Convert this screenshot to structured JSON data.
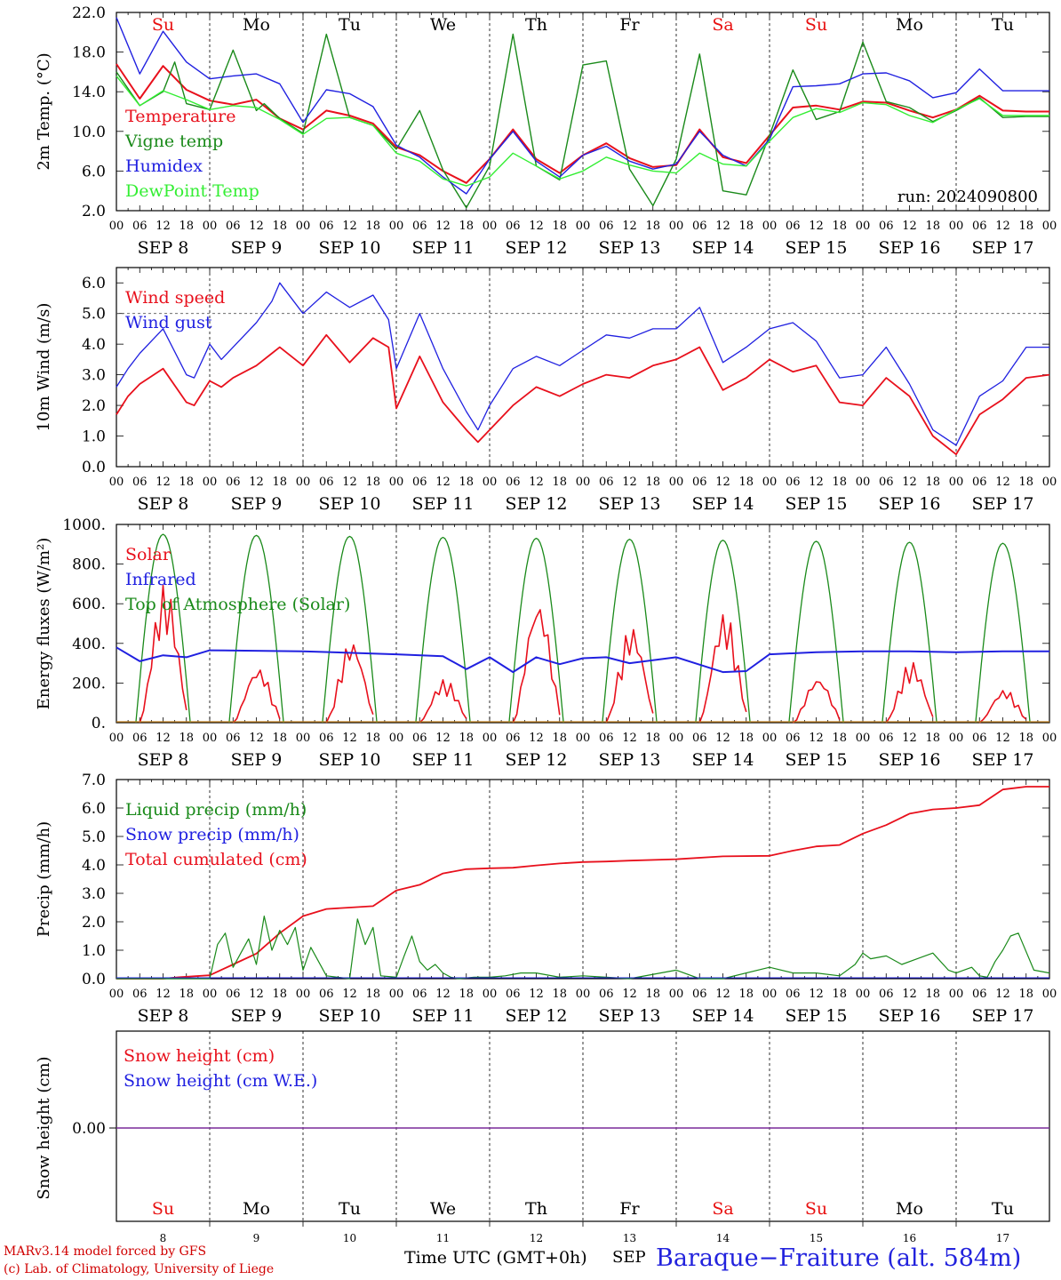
{
  "meta": {
    "run_label": "run: 2024090800",
    "footer_model": "MARv3.14 model forced by GFS",
    "footer_lab": "(c) Lab. of Climatology, University of Liege",
    "footer_time": "Time UTC (GMT+0h)",
    "footer_sep": "SEP",
    "station": "Baraque−Fraiture (alt. 584m)"
  },
  "colors": {
    "red": "#e8101c",
    "green": "#1a8a1a",
    "blue": "#2020e0",
    "lightgreen": "#33ee33",
    "purple": "#7a2a9a",
    "weekend": "#e81010"
  },
  "days": {
    "weekday_labels": [
      "Su",
      "Mo",
      "Tu",
      "We",
      "Th",
      "Fr",
      "Sa",
      "Su",
      "Mo",
      "Tu"
    ],
    "weekend_flags": [
      true,
      false,
      false,
      false,
      false,
      false,
      true,
      true,
      false,
      false
    ],
    "date_labels": [
      "SEP  8",
      "SEP  9",
      "SEP 10",
      "SEP 11",
      "SEP 12",
      "SEP 13",
      "SEP 14",
      "SEP 15",
      "SEP 16",
      "SEP 17"
    ],
    "day_numbers": [
      "8",
      "9",
      "10",
      "11",
      "12",
      "13",
      "14",
      "15",
      "16",
      "17"
    ],
    "hour_ticks": [
      "00",
      "06",
      "12",
      "18"
    ],
    "final_hour_tick": "00"
  },
  "chart_data": [
    {
      "type": "line",
      "x_unit": "hours since 2024-09-08 00 UTC",
      "ylabel": "2m Temp. (°C)",
      "ylim": [
        2,
        22
      ],
      "yticks": [
        "2.0",
        "6.0",
        "10.0",
        "14.0",
        "18.0",
        "22.0"
      ],
      "legend": [
        "Temperature",
        "Vigne temp",
        "Humidex",
        "DewPoint Temp"
      ],
      "series": [
        {
          "name": "Temperature",
          "color": "red",
          "x": [
            0,
            6,
            12,
            18,
            24,
            30,
            36,
            42,
            48,
            54,
            60,
            66,
            72,
            78,
            84,
            90,
            96,
            102,
            108,
            114,
            120,
            126,
            132,
            138,
            144,
            150,
            156,
            162,
            168,
            174,
            180,
            186,
            192,
            198,
            204,
            210,
            216,
            222,
            228,
            234,
            240
          ],
          "y": [
            16.8,
            13.3,
            16.6,
            14.2,
            13.1,
            12.7,
            13.2,
            11.3,
            10.2,
            12.1,
            11.6,
            10.8,
            8.4,
            7.6,
            6,
            4.8,
            7.2,
            10.2,
            7.2,
            5.8,
            7.6,
            8.8,
            7.3,
            6.4,
            6.6,
            10.2,
            7.4,
            6.8,
            9.6,
            12.4,
            12.6,
            12.2,
            13,
            12.9,
            12.1,
            11.4,
            12.2,
            13.6,
            12.1,
            12.0,
            12.0
          ]
        },
        {
          "name": "Vigne temp",
          "color": "green",
          "x": [
            0,
            6,
            12,
            15,
            18,
            24,
            30,
            36,
            38,
            42,
            48,
            54,
            60,
            66,
            72,
            78,
            84,
            90,
            96,
            102,
            108,
            114,
            120,
            126,
            132,
            138,
            144,
            150,
            156,
            162,
            168,
            174,
            180,
            186,
            192,
            198,
            204,
            210,
            216,
            222,
            228,
            234,
            240
          ],
          "y": [
            16,
            12.6,
            14,
            17,
            12.8,
            12.2,
            18.2,
            12.1,
            12.8,
            11.3,
            9.8,
            19.8,
            11.4,
            10.6,
            8.2,
            12.1,
            6.1,
            2.3,
            6.5,
            19.8,
            6.5,
            5.1,
            16.7,
            17.1,
            6.2,
            2.5,
            7.2,
            17.8,
            4.0,
            3.6,
            9.6,
            16.2,
            11.2,
            12,
            19,
            13,
            12.4,
            11.0,
            12.1,
            13.4,
            11.4,
            11.5,
            11.5
          ]
        },
        {
          "name": "Humidex",
          "color": "blue",
          "x": [
            0,
            6,
            12,
            18,
            24,
            30,
            36,
            42,
            48,
            54,
            60,
            66,
            72,
            78,
            84,
            90,
            96,
            102,
            108,
            114,
            120,
            126,
            132,
            138,
            144,
            150,
            156,
            162,
            168,
            174,
            180,
            186,
            192,
            198,
            204,
            210,
            216,
            222,
            228,
            234,
            240
          ],
          "y": [
            21.5,
            15.8,
            20.1,
            17,
            15.3,
            15.6,
            15.8,
            14.8,
            10.9,
            14.2,
            13.8,
            12.5,
            8.6,
            7.4,
            5.4,
            3.7,
            7.2,
            10.0,
            7.0,
            5.4,
            7.6,
            8.5,
            7.0,
            6.2,
            6.7,
            10.0,
            7.6,
            6.5,
            9.2,
            14.5,
            14.6,
            14.8,
            15.8,
            15.9,
            15.1,
            13.4,
            13.9,
            16.3,
            14.1,
            14.1,
            14.1
          ]
        },
        {
          "name": "DewPoint Temp",
          "color": "lightgreen",
          "x": [
            0,
            6,
            12,
            18,
            24,
            30,
            36,
            42,
            48,
            54,
            60,
            66,
            72,
            78,
            84,
            90,
            96,
            102,
            108,
            114,
            120,
            126,
            132,
            138,
            144,
            150,
            156,
            162,
            168,
            174,
            180,
            186,
            192,
            198,
            204,
            210,
            216,
            222,
            228,
            234,
            240
          ],
          "y": [
            15.6,
            12.6,
            14.1,
            13.2,
            12.2,
            12.6,
            12.4,
            11.2,
            9.7,
            11.3,
            11.4,
            10.6,
            7.8,
            7.0,
            5.2,
            4.5,
            5.4,
            7.8,
            6.5,
            5.2,
            6.0,
            7.4,
            6.6,
            6.0,
            5.8,
            7.8,
            6.7,
            6.5,
            9.0,
            11.4,
            12.3,
            11.9,
            12.9,
            12.7,
            11.6,
            10.9,
            12.2,
            13.3,
            11.6,
            11.6,
            11.6
          ]
        }
      ]
    },
    {
      "type": "line",
      "x_unit": "hours since 2024-09-08 00 UTC",
      "ylabel": "10m Wind (m/s)",
      "ylim": [
        0,
        6.5
      ],
      "yticks": [
        "0.0",
        "1.0",
        "2.0",
        "3.0",
        "4.0",
        "5.0",
        "6.0"
      ],
      "reference_line": 5.0,
      "legend": [
        "Wind speed",
        "Wind gust"
      ],
      "series": [
        {
          "name": "Wind speed",
          "color": "red",
          "x": [
            0,
            3,
            6,
            12,
            18,
            20,
            24,
            27,
            30,
            36,
            40,
            42,
            48,
            54,
            60,
            66,
            70,
            72,
            78,
            84,
            90,
            93,
            96,
            102,
            108,
            114,
            120,
            126,
            132,
            138,
            144,
            150,
            156,
            162,
            168,
            174,
            180,
            186,
            192,
            198,
            204,
            210,
            216,
            222,
            228,
            234,
            240
          ],
          "y": [
            1.7,
            2.3,
            2.7,
            3.2,
            2.1,
            2.0,
            2.8,
            2.6,
            2.9,
            3.3,
            3.7,
            3.9,
            3.3,
            4.3,
            3.4,
            4.2,
            3.9,
            1.9,
            3.6,
            2.1,
            1.2,
            0.8,
            1.2,
            2.0,
            2.6,
            2.3,
            2.7,
            3.0,
            2.9,
            3.3,
            3.5,
            3.9,
            2.5,
            2.9,
            3.5,
            3.1,
            3.3,
            2.1,
            2.0,
            2.9,
            2.3,
            1.0,
            0.4,
            1.7,
            2.2,
            2.9,
            3.0
          ]
        },
        {
          "name": "Wind gust",
          "color": "blue",
          "x": [
            0,
            3,
            6,
            12,
            18,
            20,
            24,
            27,
            30,
            36,
            40,
            42,
            48,
            54,
            60,
            66,
            70,
            72,
            78,
            84,
            90,
            93,
            96,
            102,
            108,
            114,
            120,
            126,
            132,
            138,
            144,
            150,
            156,
            162,
            168,
            174,
            180,
            186,
            192,
            198,
            204,
            210,
            216,
            222,
            228,
            234,
            240
          ],
          "y": [
            2.6,
            3.2,
            3.7,
            4.5,
            3.0,
            2.9,
            4.0,
            3.5,
            3.9,
            4.7,
            5.4,
            6.0,
            5.0,
            5.7,
            5.2,
            5.6,
            4.8,
            3.2,
            5.0,
            3.2,
            1.8,
            1.2,
            2.0,
            3.2,
            3.6,
            3.3,
            3.8,
            4.3,
            4.2,
            4.5,
            4.5,
            5.2,
            3.4,
            3.9,
            4.5,
            4.7,
            4.1,
            2.9,
            3.0,
            3.9,
            2.7,
            1.2,
            0.7,
            2.3,
            2.8,
            3.9,
            3.9
          ]
        }
      ]
    },
    {
      "type": "line",
      "x_unit": "hours since 2024-09-08 00 UTC",
      "ylabel": "Energy fluxes (W/m²)",
      "ylim": [
        0,
        1000
      ],
      "yticks": [
        "0.",
        "200.",
        "400.",
        "600.",
        "800.",
        "1000."
      ],
      "legend": [
        "Solar",
        "Infrared",
        "Top of Atmosphere (Solar)"
      ],
      "toa_peaks": [
        950,
        945,
        940,
        935,
        930,
        925,
        920,
        915,
        910,
        905
      ],
      "solar_peaks": [
        700,
        280,
        420,
        220,
        620,
        490,
        560,
        230,
        310,
        170
      ],
      "series": [
        {
          "name": "Infrared",
          "color": "blue",
          "x": [
            0,
            6,
            12,
            18,
            24,
            48,
            72,
            84,
            90,
            96,
            102,
            108,
            114,
            120,
            126,
            132,
            144,
            156,
            162,
            168,
            180,
            192,
            204,
            216,
            228,
            240
          ],
          "y": [
            380,
            310,
            340,
            330,
            365,
            360,
            345,
            335,
            270,
            330,
            255,
            330,
            295,
            325,
            330,
            300,
            330,
            255,
            260,
            345,
            355,
            360,
            360,
            355,
            360,
            360
          ]
        }
      ]
    },
    {
      "type": "line",
      "x_unit": "hours since 2024-09-08 00 UTC",
      "ylabel": "Precip (mm/h)",
      "ylim": [
        0,
        7
      ],
      "yticks": [
        "0.0",
        "1.0",
        "2.0",
        "3.0",
        "4.0",
        "5.0",
        "6.0",
        "7.0"
      ],
      "legend": [
        "Liquid precip (mm/h)",
        "Snow precip (mm/h)",
        "Total cumulated (cm)"
      ],
      "series": [
        {
          "name": "Total cumulated (cm)",
          "color": "red",
          "x": [
            0,
            12,
            16,
            24,
            30,
            36,
            42,
            48,
            54,
            60,
            66,
            72,
            78,
            84,
            90,
            96,
            102,
            108,
            114,
            120,
            126,
            132,
            144,
            156,
            168,
            174,
            180,
            186,
            192,
            198,
            204,
            210,
            216,
            222,
            228,
            234,
            240
          ],
          "y": [
            0,
            0,
            0.05,
            0.12,
            0.5,
            0.88,
            1.6,
            2.2,
            2.45,
            2.5,
            2.55,
            3.1,
            3.3,
            3.7,
            3.85,
            3.88,
            3.9,
            3.98,
            4.05,
            4.1,
            4.12,
            4.15,
            4.2,
            4.3,
            4.32,
            4.5,
            4.65,
            4.7,
            5.1,
            5.4,
            5.8,
            5.95,
            6.0,
            6.1,
            6.65,
            6.75,
            6.75
          ]
        },
        {
          "name": "Liquid precip (mm/h)",
          "color": "green",
          "x": [
            0,
            24,
            26,
            28,
            30,
            32,
            34,
            36,
            38,
            40,
            42,
            44,
            46,
            48,
            50,
            54,
            60,
            62,
            64,
            66,
            68,
            72,
            74,
            76,
            78,
            80,
            82,
            84,
            86,
            88,
            92,
            96,
            100,
            104,
            108,
            114,
            120,
            126,
            132,
            144,
            150,
            156,
            168,
            174,
            180,
            186,
            190,
            192,
            194,
            198,
            202,
            206,
            210,
            214,
            216,
            220,
            222,
            224,
            226,
            228,
            230,
            232,
            236,
            240
          ],
          "y": [
            0,
            0,
            1.2,
            1.6,
            0.4,
            0.9,
            1.4,
            0.5,
            2.2,
            1.0,
            1.7,
            1.2,
            1.8,
            0.3,
            1.1,
            0.1,
            0,
            2.1,
            1.2,
            1.8,
            0.1,
            0.05,
            0.8,
            1.5,
            0.6,
            0.3,
            0.5,
            0.2,
            0.05,
            0,
            0.05,
            0.05,
            0.1,
            0.2,
            0.2,
            0.05,
            0.1,
            0.05,
            0,
            0.3,
            0,
            0,
            0.4,
            0.2,
            0.2,
            0.1,
            0.5,
            0.9,
            0.7,
            0.8,
            0.5,
            0.7,
            0.9,
            0.3,
            0.2,
            0.4,
            0.1,
            0.05,
            0.6,
            1.0,
            1.5,
            1.6,
            0.3,
            0.2
          ]
        }
      ]
    },
    {
      "type": "line",
      "x_unit": "hours since 2024-09-08 00 UTC",
      "ylabel": "Snow height (cm)",
      "yticks": [
        "0.00"
      ],
      "legend": [
        "Snow height (cm)",
        "Snow height (cm W.E.)"
      ],
      "series": [
        {
          "name": "Snow height (cm)",
          "color": "purple",
          "x": [
            0,
            240
          ],
          "y": [
            0,
            0
          ]
        }
      ]
    }
  ]
}
